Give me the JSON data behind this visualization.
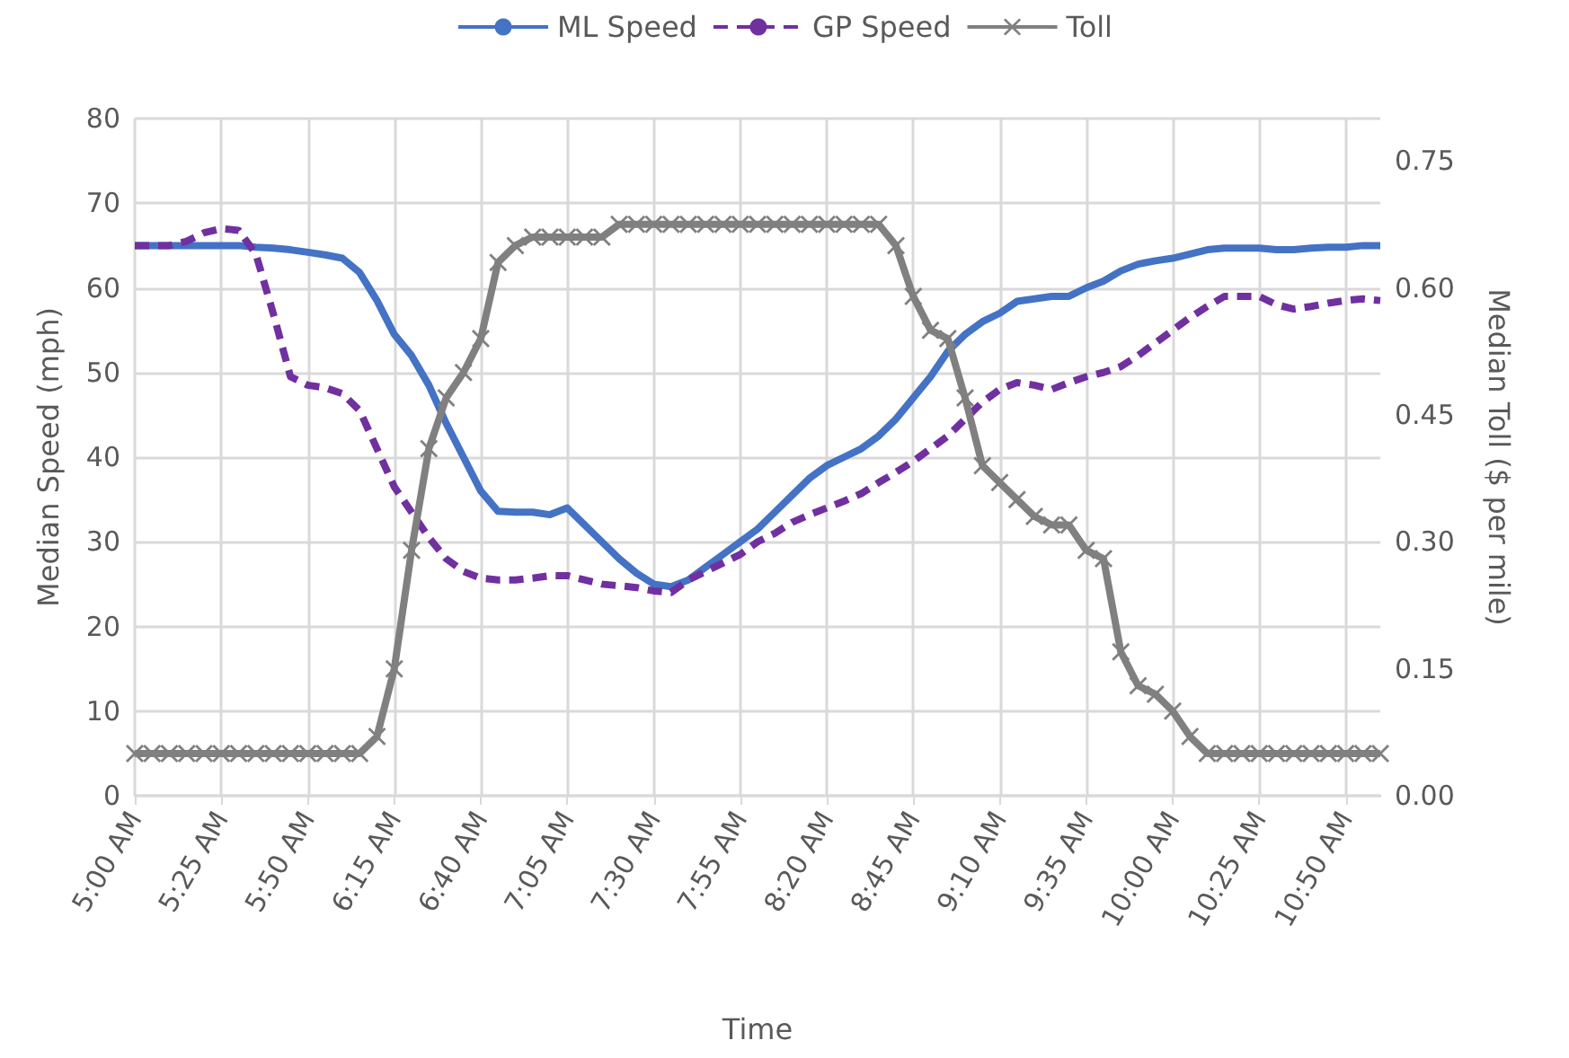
{
  "chart_data": {
    "type": "line",
    "xlabel": "Time",
    "ylabel": "Median Speed (mph)",
    "y2label": "Median Toll ($ per mile)",
    "categories": [
      "5:00 AM",
      null,
      null,
      null,
      null,
      "5:25 AM",
      null,
      null,
      null,
      null,
      "5:50 AM",
      null,
      null,
      null,
      null,
      "6:15 AM",
      null,
      null,
      null,
      null,
      "6:40 AM",
      null,
      null,
      null,
      null,
      "7:05 AM",
      null,
      null,
      null,
      null,
      "7:30 AM",
      null,
      null,
      null,
      null,
      "7:55 AM",
      null,
      null,
      null,
      null,
      "8:20 AM",
      null,
      null,
      null,
      null,
      "8:45 AM",
      null,
      null,
      null,
      null,
      "9:10 AM",
      null,
      null,
      null,
      null,
      "9:35 AM",
      null,
      null,
      null,
      null,
      "10:00 AM",
      null,
      null,
      null,
      null,
      "10:25 AM",
      null,
      null,
      null,
      null,
      "10:50 AM",
      null,
      null
    ],
    "series": [
      {
        "name": "ML Speed",
        "color": "#4472c4",
        "marker": "none",
        "line_style": "solid",
        "values": [
          65,
          65,
          65,
          65,
          65,
          65,
          65,
          64.8,
          64.7,
          64.5,
          64.2,
          63.9,
          63.5,
          61.8,
          58.5,
          54.5,
          52,
          48.5,
          44,
          40,
          36,
          33.6,
          33.5,
          33.5,
          33.2,
          34,
          32,
          30,
          28,
          26.3,
          25,
          24.7,
          25.5,
          27,
          28.5,
          30,
          31.5,
          33.5,
          35.5,
          37.5,
          39,
          40,
          41,
          42.5,
          44.5,
          47,
          49.5,
          52.5,
          54.5,
          56,
          57,
          58.4,
          58.7,
          59,
          59,
          60,
          60.8,
          62,
          62.8,
          63.2,
          63.5,
          64,
          64.5,
          64.7,
          64.7,
          64.7,
          64.5,
          64.5,
          64.7,
          64.8,
          64.8,
          65,
          65
        ]
      },
      {
        "name": "GP Speed",
        "color": "#7030a0",
        "marker": "none",
        "line_style": "dashed",
        "values": [
          65,
          65,
          65,
          65.5,
          66.5,
          67,
          66.8,
          64,
          57,
          49.5,
          48.5,
          48.2,
          47.5,
          45.5,
          41,
          36.5,
          33.5,
          30.5,
          28,
          26.5,
          25.7,
          25.5,
          25.5,
          25.7,
          26,
          26,
          25.5,
          25,
          24.8,
          24.6,
          24.2,
          24,
          25.5,
          26.5,
          27.5,
          28.5,
          30,
          31,
          32.3,
          33.2,
          34,
          34.8,
          35.7,
          37,
          38.2,
          39.5,
          41,
          42.5,
          44.5,
          46.5,
          48,
          48.8,
          48.5,
          48,
          48.8,
          49.5,
          50,
          50.7,
          52,
          53.5,
          55,
          56.5,
          57.8,
          59,
          59,
          59,
          58,
          57.5,
          57.8,
          58.2,
          58.5,
          58.7,
          58.5
        ]
      },
      {
        "name": "Toll",
        "color": "#808080",
        "marker": "cross",
        "line_style": "solid",
        "axis": "y2",
        "values": [
          0.05,
          0.05,
          0.05,
          0.05,
          0.05,
          0.05,
          0.05,
          0.05,
          0.05,
          0.05,
          0.05,
          0.05,
          0.05,
          0.05,
          0.07,
          0.15,
          0.29,
          0.41,
          0.47,
          0.5,
          0.54,
          0.63,
          0.65,
          0.66,
          0.66,
          0.66,
          0.66,
          0.66,
          0.675,
          0.675,
          0.675,
          0.675,
          0.675,
          0.675,
          0.675,
          0.675,
          0.675,
          0.675,
          0.675,
          0.675,
          0.675,
          0.675,
          0.675,
          0.675,
          0.65,
          0.59,
          0.55,
          0.54,
          0.47,
          0.39,
          0.37,
          0.35,
          0.33,
          0.32,
          0.32,
          0.29,
          0.28,
          0.17,
          0.13,
          0.12,
          0.1,
          0.07,
          0.05,
          0.05,
          0.05,
          0.05,
          0.05,
          0.05,
          0.05,
          0.05,
          0.05,
          0.05,
          0.05
        ]
      }
    ],
    "ylim": [
      0,
      80
    ],
    "yticks": [
      0,
      10,
      20,
      30,
      40,
      50,
      60,
      70,
      80
    ],
    "y2lim": [
      0,
      0.8
    ],
    "y2ticks": [
      {
        "value": 0,
        "label": "0.00"
      },
      {
        "value": 0.15,
        "label": "0.15"
      },
      {
        "value": 0.3,
        "label": "0.30"
      },
      {
        "value": 0.45,
        "label": "0.45"
      },
      {
        "value": 0.6,
        "label": "0.60"
      },
      {
        "value": 0.75,
        "label": "0.75"
      }
    ],
    "grid": true,
    "legend": "top"
  }
}
